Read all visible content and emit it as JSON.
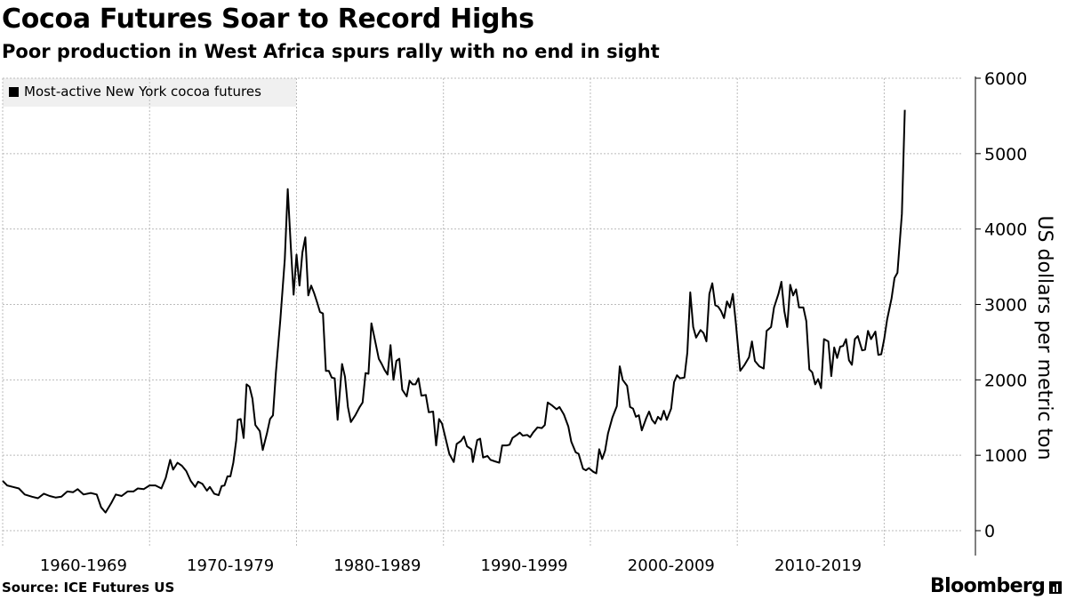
{
  "header": {
    "title": "Cocoa Futures Soar to Record Highs",
    "subtitle": "Poor production in West Africa spurs rally with no end in sight"
  },
  "footer": {
    "source": "Source: ICE Futures US",
    "brand": "Bloomberg"
  },
  "colors": {
    "line": "#000000",
    "grid": "#bbbbbb",
    "legend_bg": "#f0f0f0"
  },
  "chart_data": {
    "type": "line",
    "title": "Cocoa Futures Soar to Record Highs",
    "ylabel": "US dollars per metric ton",
    "ylim": [
      0,
      6000
    ],
    "y_ticks": [
      0,
      1000,
      2000,
      3000,
      4000,
      5000,
      6000
    ],
    "x_range": [
      1959.0,
      2024.3
    ],
    "x_tick_labels": [
      {
        "label": "1960-1969",
        "center": 1964.5
      },
      {
        "label": "1970-1979",
        "center": 1974.5
      },
      {
        "label": "1980-1989",
        "center": 1984.5
      },
      {
        "label": "1990-1999",
        "center": 1994.5
      },
      {
        "label": "2000-2009",
        "center": 2004.5
      },
      {
        "label": "2010-2019",
        "center": 2014.5
      }
    ],
    "x_gridlines": [
      1959.0,
      1969.0,
      1979.0,
      1989.0,
      1999.0,
      2009.0,
      2019.0
    ],
    "grid": true,
    "legend": "top-left",
    "series": [
      {
        "name": "Most-active New York cocoa futures",
        "points": [
          [
            1959.0,
            660
          ],
          [
            1959.3,
            600
          ],
          [
            1959.7,
            580
          ],
          [
            1960.1,
            560
          ],
          [
            1960.5,
            480
          ],
          [
            1961.0,
            450
          ],
          [
            1961.4,
            430
          ],
          [
            1961.8,
            490
          ],
          [
            1962.2,
            460
          ],
          [
            1962.6,
            440
          ],
          [
            1963.0,
            450
          ],
          [
            1963.4,
            520
          ],
          [
            1963.8,
            510
          ],
          [
            1964.1,
            550
          ],
          [
            1964.5,
            480
          ],
          [
            1965.0,
            500
          ],
          [
            1965.4,
            480
          ],
          [
            1965.7,
            310
          ],
          [
            1966.0,
            240
          ],
          [
            1966.4,
            370
          ],
          [
            1966.7,
            480
          ],
          [
            1967.1,
            460
          ],
          [
            1967.5,
            520
          ],
          [
            1967.9,
            520
          ],
          [
            1968.2,
            560
          ],
          [
            1968.6,
            550
          ],
          [
            1969.0,
            600
          ],
          [
            1969.4,
            600
          ],
          [
            1969.8,
            560
          ],
          [
            1970.1,
            700
          ],
          [
            1970.4,
            940
          ],
          [
            1970.6,
            810
          ],
          [
            1970.9,
            900
          ],
          [
            1971.2,
            860
          ],
          [
            1971.5,
            790
          ],
          [
            1971.8,
            660
          ],
          [
            1972.1,
            580
          ],
          [
            1972.3,
            650
          ],
          [
            1972.6,
            620
          ],
          [
            1972.9,
            530
          ],
          [
            1973.1,
            580
          ],
          [
            1973.4,
            490
          ],
          [
            1973.7,
            470
          ],
          [
            1973.9,
            590
          ],
          [
            1974.1,
            600
          ],
          [
            1974.3,
            720
          ],
          [
            1974.5,
            720
          ],
          [
            1974.7,
            900
          ],
          [
            1974.9,
            1200
          ],
          [
            1975.0,
            1470
          ],
          [
            1975.2,
            1480
          ],
          [
            1975.4,
            1230
          ],
          [
            1975.6,
            1940
          ],
          [
            1975.8,
            1910
          ],
          [
            1976.0,
            1750
          ],
          [
            1976.2,
            1400
          ],
          [
            1976.5,
            1320
          ],
          [
            1976.7,
            1070
          ],
          [
            1977.0,
            1300
          ],
          [
            1977.2,
            1480
          ],
          [
            1977.4,
            1530
          ],
          [
            1977.6,
            2100
          ],
          [
            1977.9,
            2800
          ],
          [
            1978.2,
            3600
          ],
          [
            1978.4,
            4530
          ],
          [
            1978.6,
            3800
          ],
          [
            1978.8,
            3130
          ],
          [
            1979.0,
            3660
          ],
          [
            1979.2,
            3250
          ],
          [
            1979.4,
            3690
          ],
          [
            1979.6,
            3890
          ],
          [
            1979.8,
            3120
          ],
          [
            1980.0,
            3250
          ],
          [
            1980.2,
            3150
          ],
          [
            1980.4,
            3030
          ],
          [
            1980.6,
            2900
          ],
          [
            1980.8,
            2880
          ],
          [
            1981.0,
            2120
          ],
          [
            1981.2,
            2120
          ],
          [
            1981.4,
            2030
          ],
          [
            1981.6,
            2020
          ],
          [
            1981.8,
            1470
          ],
          [
            1982.1,
            2210
          ],
          [
            1982.3,
            2040
          ],
          [
            1982.5,
            1640
          ],
          [
            1982.7,
            1440
          ],
          [
            1983.0,
            1530
          ],
          [
            1983.3,
            1640
          ],
          [
            1983.5,
            1700
          ],
          [
            1983.7,
            2090
          ],
          [
            1983.9,
            2080
          ],
          [
            1984.1,
            2750
          ],
          [
            1984.3,
            2560
          ],
          [
            1984.6,
            2280
          ],
          [
            1984.8,
            2210
          ],
          [
            1985.0,
            2130
          ],
          [
            1985.2,
            2070
          ],
          [
            1985.4,
            2460
          ],
          [
            1985.6,
            2000
          ],
          [
            1985.8,
            2250
          ],
          [
            1986.0,
            2280
          ],
          [
            1986.2,
            1870
          ],
          [
            1986.5,
            1780
          ],
          [
            1986.7,
            1990
          ],
          [
            1986.9,
            1940
          ],
          [
            1987.1,
            1940
          ],
          [
            1987.3,
            2020
          ],
          [
            1987.5,
            1790
          ],
          [
            1987.8,
            1800
          ],
          [
            1988.0,
            1570
          ],
          [
            1988.3,
            1580
          ],
          [
            1988.5,
            1130
          ],
          [
            1988.7,
            1480
          ],
          [
            1988.9,
            1420
          ],
          [
            1989.1,
            1260
          ],
          [
            1989.4,
            1020
          ],
          [
            1989.7,
            910
          ],
          [
            1989.9,
            1150
          ],
          [
            1990.2,
            1190
          ],
          [
            1990.4,
            1250
          ],
          [
            1990.6,
            1120
          ],
          [
            1990.9,
            1080
          ],
          [
            1991.0,
            910
          ],
          [
            1991.3,
            1200
          ],
          [
            1991.5,
            1220
          ],
          [
            1991.7,
            970
          ],
          [
            1992.0,
            990
          ],
          [
            1992.2,
            940
          ],
          [
            1992.5,
            920
          ],
          [
            1992.8,
            900
          ],
          [
            1993.0,
            1130
          ],
          [
            1993.3,
            1130
          ],
          [
            1993.5,
            1140
          ],
          [
            1993.7,
            1230
          ],
          [
            1994.0,
            1270
          ],
          [
            1994.2,
            1300
          ],
          [
            1994.4,
            1260
          ],
          [
            1994.7,
            1270
          ],
          [
            1994.9,
            1240
          ],
          [
            1995.1,
            1300
          ],
          [
            1995.4,
            1370
          ],
          [
            1995.7,
            1360
          ],
          [
            1995.9,
            1400
          ],
          [
            1996.1,
            1700
          ],
          [
            1996.4,
            1660
          ],
          [
            1996.7,
            1610
          ],
          [
            1996.9,
            1640
          ],
          [
            1997.2,
            1540
          ],
          [
            1997.5,
            1380
          ],
          [
            1997.7,
            1180
          ],
          [
            1998.0,
            1040
          ],
          [
            1998.2,
            1020
          ],
          [
            1998.5,
            820
          ],
          [
            1998.7,
            800
          ],
          [
            1998.9,
            830
          ],
          [
            1999.2,
            780
          ],
          [
            1999.4,
            760
          ],
          [
            1999.6,
            1080
          ],
          [
            1999.8,
            950
          ],
          [
            2000.0,
            1060
          ],
          [
            2000.2,
            1290
          ],
          [
            2000.5,
            1500
          ],
          [
            2000.8,
            1650
          ],
          [
            2001.0,
            2180
          ],
          [
            2001.2,
            2000
          ],
          [
            2001.5,
            1920
          ],
          [
            2001.7,
            1640
          ],
          [
            2001.9,
            1620
          ],
          [
            2002.1,
            1510
          ],
          [
            2002.3,
            1530
          ],
          [
            2002.5,
            1330
          ],
          [
            2002.8,
            1490
          ],
          [
            2003.0,
            1580
          ],
          [
            2003.2,
            1470
          ],
          [
            2003.4,
            1420
          ],
          [
            2003.6,
            1510
          ],
          [
            2003.8,
            1470
          ],
          [
            2004.0,
            1590
          ],
          [
            2004.2,
            1470
          ],
          [
            2004.5,
            1620
          ],
          [
            2004.7,
            1970
          ],
          [
            2004.9,
            2060
          ],
          [
            2005.1,
            2020
          ],
          [
            2005.4,
            2030
          ],
          [
            2005.6,
            2360
          ],
          [
            2005.8,
            3160
          ],
          [
            2006.0,
            2700
          ],
          [
            2006.2,
            2560
          ],
          [
            2006.5,
            2660
          ],
          [
            2006.7,
            2620
          ],
          [
            2006.9,
            2510
          ],
          [
            2007.1,
            3140
          ],
          [
            2007.3,
            3280
          ],
          [
            2007.5,
            2990
          ],
          [
            2007.7,
            2970
          ],
          [
            2007.9,
            2910
          ],
          [
            2008.1,
            2820
          ],
          [
            2008.3,
            3040
          ],
          [
            2008.5,
            2960
          ],
          [
            2008.7,
            3140
          ],
          [
            2008.9,
            2760
          ],
          [
            2009.2,
            2120
          ],
          [
            2009.5,
            2200
          ],
          [
            2009.8,
            2300
          ],
          [
            2010.0,
            2510
          ],
          [
            2010.2,
            2250
          ],
          [
            2010.5,
            2180
          ],
          [
            2010.8,
            2150
          ],
          [
            2011.0,
            2650
          ],
          [
            2011.3,
            2700
          ],
          [
            2011.5,
            2960
          ],
          [
            2011.8,
            3140
          ],
          [
            2012.0,
            3300
          ],
          [
            2012.2,
            2910
          ],
          [
            2012.4,
            2700
          ],
          [
            2012.6,
            3260
          ],
          [
            2012.8,
            3120
          ],
          [
            2013.0,
            3200
          ],
          [
            2013.2,
            2960
          ],
          [
            2013.5,
            2960
          ],
          [
            2013.7,
            2780
          ],
          [
            2013.9,
            2140
          ],
          [
            2014.1,
            2100
          ],
          [
            2014.3,
            1940
          ],
          [
            2014.5,
            2010
          ],
          [
            2014.7,
            1890
          ],
          [
            2014.9,
            2540
          ],
          [
            2015.2,
            2510
          ],
          [
            2015.4,
            2050
          ],
          [
            2015.6,
            2430
          ],
          [
            2015.8,
            2290
          ],
          [
            2016.0,
            2440
          ],
          [
            2016.2,
            2450
          ],
          [
            2016.4,
            2540
          ],
          [
            2016.6,
            2260
          ],
          [
            2016.8,
            2200
          ],
          [
            2017.0,
            2540
          ],
          [
            2017.2,
            2580
          ],
          [
            2017.5,
            2390
          ],
          [
            2017.7,
            2400
          ],
          [
            2017.9,
            2650
          ],
          [
            2018.1,
            2540
          ],
          [
            2018.4,
            2640
          ],
          [
            2018.6,
            2330
          ],
          [
            2018.8,
            2340
          ],
          [
            2019.0,
            2540
          ],
          [
            2019.2,
            2800
          ],
          [
            2019.5,
            3080
          ],
          [
            2019.7,
            3350
          ],
          [
            2019.9,
            3420
          ],
          [
            2020.2,
            4200
          ],
          [
            2020.4,
            5580
          ]
        ]
      }
    ]
  }
}
